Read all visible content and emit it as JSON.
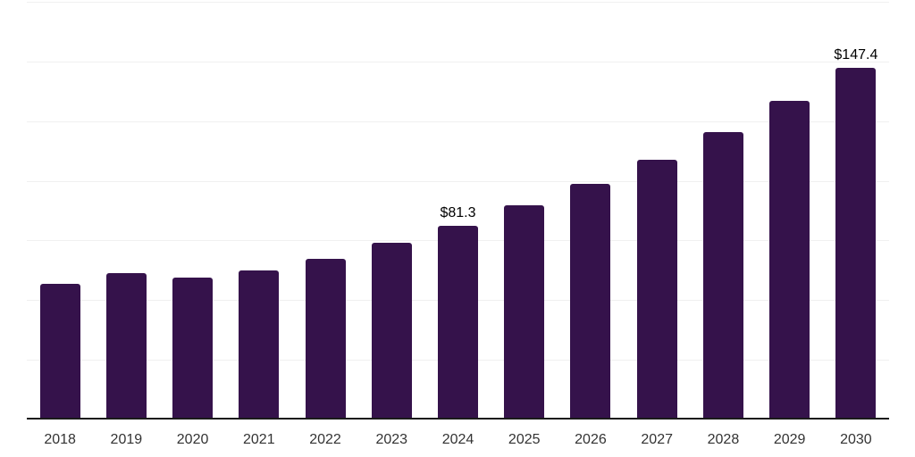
{
  "chart_data": {
    "type": "bar",
    "title": "",
    "xlabel": "",
    "ylabel": "",
    "categories": [
      "2018",
      "2019",
      "2020",
      "2021",
      "2022",
      "2023",
      "2024",
      "2025",
      "2026",
      "2027",
      "2028",
      "2029",
      "2030"
    ],
    "values": [
      56.8,
      61.3,
      59.3,
      62.6,
      67.5,
      73.9,
      81.3,
      89.6,
      98.6,
      108.7,
      120.3,
      133.4,
      147.4
    ],
    "data_labels": [
      {
        "category": "2024",
        "text": "$81.3"
      },
      {
        "category": "2030",
        "text": "$147.4"
      }
    ],
    "ylim": [
      0,
      175
    ],
    "gridline_step": 25,
    "grid": "horizontal only, no y-axis tick labels, no legend, no title",
    "legend_position": "none",
    "colors": {
      "bar": "#35124B",
      "gridline": "#f0f0f0",
      "axis_line": "#1a1a1a",
      "tick_label": "#333333",
      "data_label": "#000000",
      "background": "#ffffff"
    }
  }
}
